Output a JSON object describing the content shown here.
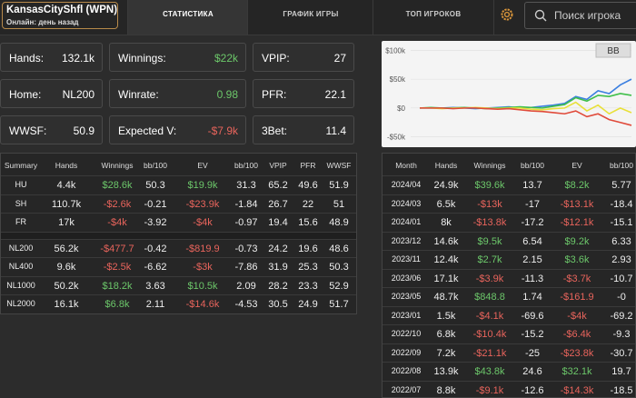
{
  "player": {
    "name": "KansasCityShfl (WPN)",
    "status": "Онлайн: день назад"
  },
  "tabs": [
    "СТАТИСТИКА",
    "ГРАФИК ИГРЫ",
    "ТОП ИГРОКОВ"
  ],
  "search_placeholder": "Поиск игрока",
  "stats": [
    {
      "label": "Hands:",
      "value": "132.1k"
    },
    {
      "label": "Winnings:",
      "value": "$22k",
      "color": "#6cc76a"
    },
    {
      "label": "VPIP:",
      "value": "27"
    },
    {
      "label": "Home:",
      "value": "NL200"
    },
    {
      "label": "Winrate:",
      "value": "0.98",
      "color": "#6cc76a"
    },
    {
      "label": "PFR:",
      "value": "22.1"
    },
    {
      "label": "WWSF:",
      "value": "50.9"
    },
    {
      "label": "Expected V:",
      "value": "-$7.9k",
      "color": "#e8645c"
    },
    {
      "label": "3Bet:",
      "value": "11.4"
    }
  ],
  "graph": {
    "type": "line",
    "badge": "BB",
    "ylim": [
      -60000,
      110000
    ],
    "yticks": [
      {
        "value": 100000,
        "label": "$100k"
      },
      {
        "value": 50000,
        "label": "$50k"
      },
      {
        "value": 0,
        "label": "$0"
      },
      {
        "value": -50000,
        "label": "-$50k"
      }
    ],
    "series": [
      {
        "color": "#3b7fe0",
        "values": [
          0,
          0,
          0,
          1000,
          0,
          -1000,
          0,
          1000,
          2000,
          0,
          1000,
          3000,
          5000,
          8000,
          20000,
          15000,
          30000,
          25000,
          40000,
          50000
        ]
      },
      {
        "color": "#3fbf4a",
        "values": [
          0,
          1000,
          0,
          0,
          1000,
          0,
          -1000,
          0,
          1000,
          2000,
          1000,
          0,
          3000,
          6000,
          18000,
          12000,
          22000,
          20000,
          25000,
          22000
        ]
      },
      {
        "color": "#e8e03a",
        "values": [
          0,
          0,
          -1000,
          0,
          0,
          1000,
          0,
          -1000,
          0,
          0,
          -2000,
          -3000,
          -1000,
          0,
          10000,
          -5000,
          5000,
          -10000,
          0,
          -8000
        ]
      },
      {
        "color": "#e04a3a",
        "values": [
          0,
          0,
          0,
          -1000,
          0,
          0,
          -1000,
          -2000,
          -1000,
          -3000,
          -5000,
          -6000,
          -8000,
          -10000,
          -5000,
          -15000,
          -10000,
          -20000,
          -25000,
          -30000
        ]
      }
    ]
  },
  "summary_table": {
    "header": [
      "Summary",
      "Hands",
      "Winnings",
      "bb/100",
      "EV",
      "bb/100",
      "VPIP",
      "PFR",
      "WWSF"
    ],
    "groups": [
      [
        [
          "HU",
          "4.4k",
          "$28.6k",
          "50.3",
          "$19.9k",
          "31.3",
          "65.2",
          "49.6",
          "51.9"
        ],
        [
          "SH",
          "110.7k",
          "-$2.6k",
          "-0.21",
          "-$23.9k",
          "-1.84",
          "26.7",
          "22",
          "51"
        ],
        [
          "FR",
          "17k",
          "-$4k",
          "-3.92",
          "-$4k",
          "-0.97",
          "19.4",
          "15.6",
          "48.9"
        ]
      ],
      [
        [
          "NL200",
          "56.2k",
          "-$477.7",
          "-0.42",
          "-$819.9",
          "-0.73",
          "24.2",
          "19.6",
          "48.6"
        ],
        [
          "NL400",
          "9.6k",
          "-$2.5k",
          "-6.62",
          "-$3k",
          "-7.86",
          "31.9",
          "25.3",
          "50.3"
        ],
        [
          "NL1000",
          "50.2k",
          "$18.2k",
          "3.63",
          "$10.5k",
          "2.09",
          "28.2",
          "23.3",
          "52.9"
        ],
        [
          "NL2000",
          "16.1k",
          "$6.8k",
          "2.11",
          "-$14.6k",
          "-4.53",
          "30.5",
          "24.9",
          "51.7"
        ]
      ]
    ]
  },
  "month_table": {
    "header": [
      "Month",
      "Hands",
      "Winnings",
      "bb/100",
      "EV",
      "bb/100"
    ],
    "rows": [
      [
        "2024/04",
        "24.9k",
        "$39.6k",
        "13.7",
        "$8.2k",
        "5.77"
      ],
      [
        "2024/03",
        "6.5k",
        "-$13k",
        "-17",
        "-$13.1k",
        "-18.4"
      ],
      [
        "2024/01",
        "8k",
        "-$13.8k",
        "-17.2",
        "-$12.1k",
        "-15.1"
      ],
      [
        "2023/12",
        "14.6k",
        "$9.5k",
        "6.54",
        "$9.2k",
        "6.33"
      ],
      [
        "2023/11",
        "12.4k",
        "$2.7k",
        "2.15",
        "$3.6k",
        "2.93"
      ],
      [
        "2023/06",
        "17.1k",
        "-$3.9k",
        "-11.3",
        "-$3.7k",
        "-10.7"
      ],
      [
        "2023/05",
        "48.7k",
        "$848.8",
        "1.74",
        "-$161.9",
        "-0"
      ],
      [
        "2023/01",
        "1.5k",
        "-$4.1k",
        "-69.6",
        "-$4k",
        "-69.2"
      ],
      [
        "2022/10",
        "6.8k",
        "-$10.4k",
        "-15.2",
        "-$6.4k",
        "-9.3"
      ],
      [
        "2022/09",
        "7.2k",
        "-$21.1k",
        "-25",
        "-$23.8k",
        "-30.7"
      ],
      [
        "2022/08",
        "13.9k",
        "$43.8k",
        "24.6",
        "$32.1k",
        "19.7"
      ],
      [
        "2022/07",
        "8.8k",
        "-$9.1k",
        "-12.6",
        "-$14.3k",
        "-18.5"
      ]
    ]
  }
}
